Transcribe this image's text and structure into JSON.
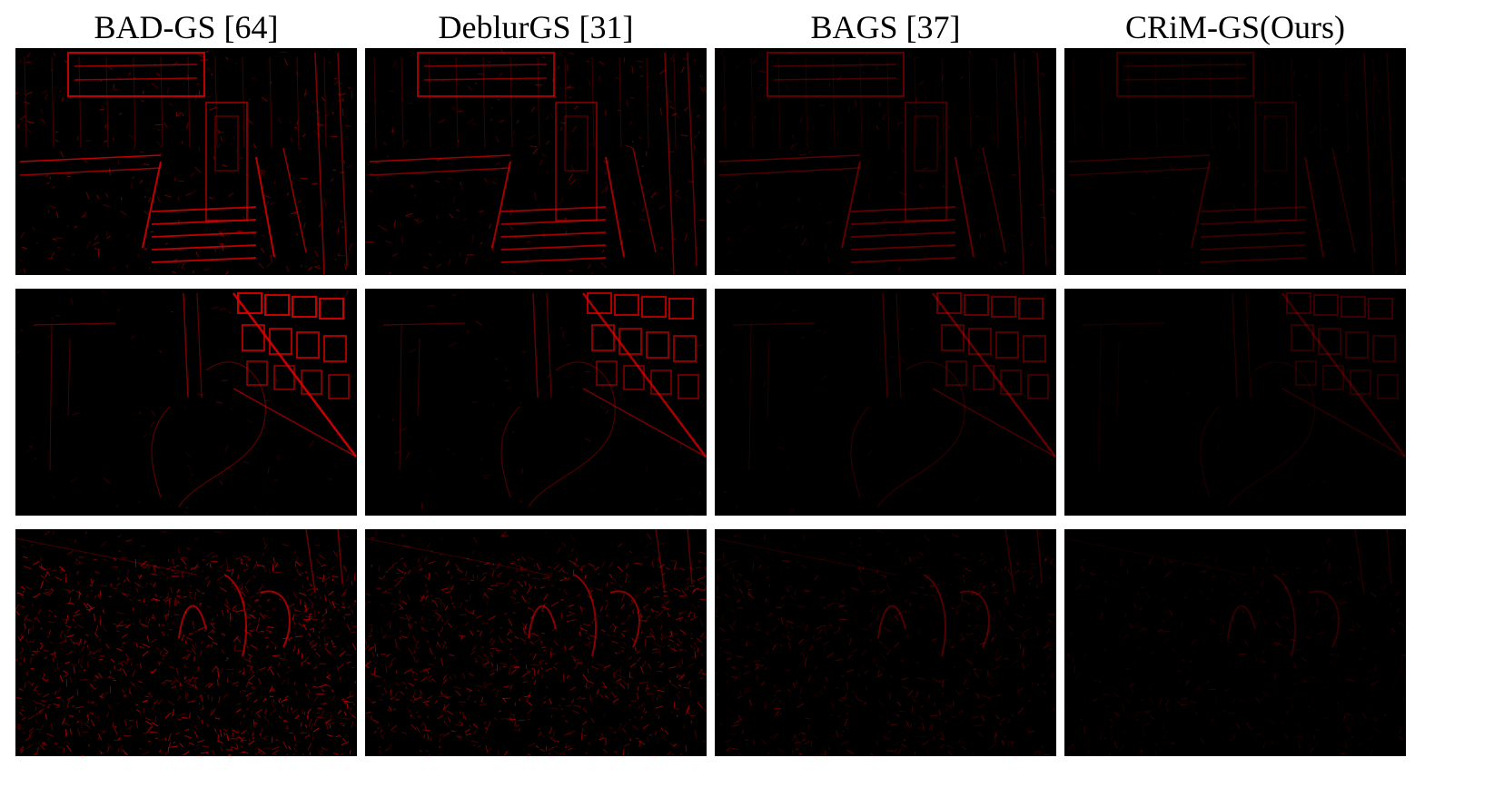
{
  "figure": {
    "columns": [
      {
        "id": "bad-gs",
        "title": "BAD-GS [64]",
        "strength": 1.0
      },
      {
        "id": "deblurgs",
        "title": "DeblurGS [31]",
        "strength": 0.85
      },
      {
        "id": "bags",
        "title": "BAGS [37]",
        "strength": 0.5
      },
      {
        "id": "crim-gs",
        "title": "CRiM-GS(Ours)",
        "strength": 0.3
      }
    ],
    "rows": [
      {
        "id": "scene-storefront"
      },
      {
        "id": "scene-bicycle-shop"
      },
      {
        "id": "scene-garden"
      }
    ],
    "colors": {
      "background": "#000000",
      "error": "#e00000"
    }
  }
}
